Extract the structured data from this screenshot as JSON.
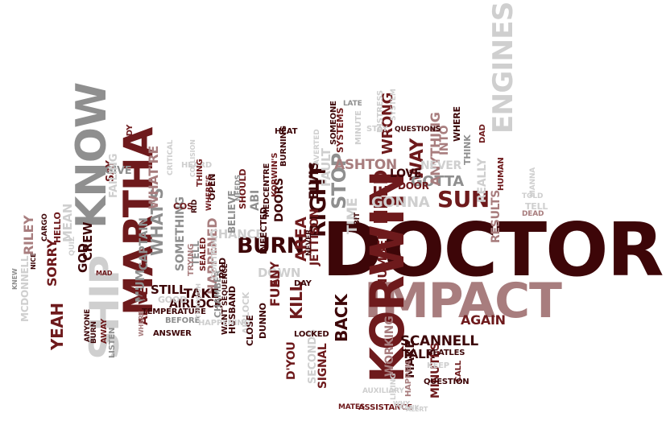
{
  "palette": {
    "dark": "#3d0608",
    "maroon": "#6e1a1c",
    "rose": "#a87d7e",
    "grey": "#8f8f8f",
    "silver": "#cfcfcf",
    "white": "#ffffff"
  },
  "words": [
    {
      "text": "DOCTOR",
      "c": "dark"
    },
    {
      "text": "IMPACT",
      "c": "rose"
    },
    {
      "text": "KORWIN",
      "c": "maroon"
    },
    {
      "text": "MARTHA",
      "c": "maroon"
    },
    {
      "text": "KNOW",
      "c": "grey"
    },
    {
      "text": "SHIP",
      "c": "silver"
    },
    {
      "text": "ENGINES",
      "c": "silver"
    },
    {
      "text": "SUN",
      "c": "maroon"
    },
    {
      "text": "BURN",
      "c": "dark"
    },
    {
      "text": "RIGHT",
      "c": "dark"
    },
    {
      "text": "STOP",
      "c": "grey"
    },
    {
      "text": "NEED",
      "c": "maroon"
    },
    {
      "text": "WAY",
      "c": "maroon"
    },
    {
      "text": "GOTTA",
      "c": "grey"
    },
    {
      "text": "GONNA",
      "c": "silver"
    },
    {
      "text": "ASHTON",
      "c": "rose"
    },
    {
      "text": "TIME",
      "c": "silver"
    },
    {
      "text": "WHAT'S",
      "c": "grey"
    },
    {
      "text": "BACK",
      "c": "dark"
    },
    {
      "text": "KILL",
      "c": "maroon"
    },
    {
      "text": "AREA",
      "c": "maroon"
    },
    {
      "text": "WRONG",
      "c": "maroon"
    },
    {
      "text": "ELVIS",
      "c": "dark"
    },
    {
      "text": "ANYTHING",
      "c": "rose"
    },
    {
      "text": "INTO",
      "c": "rose"
    },
    {
      "text": "NEVER",
      "c": "silver"
    },
    {
      "text": "LOVE",
      "c": "dark"
    },
    {
      "text": "DOOR",
      "c": "maroon"
    },
    {
      "text": "REALLY",
      "c": "silver"
    },
    {
      "text": "RESULTS",
      "c": "rose"
    },
    {
      "text": "WHAT'RE",
      "c": "rose"
    },
    {
      "text": "HAPPENED",
      "c": "rose"
    },
    {
      "text": "CHANCE",
      "c": "silver"
    },
    {
      "text": "DOWN",
      "c": "silver"
    },
    {
      "text": "TAKE",
      "c": "dark"
    },
    {
      "text": "STILL",
      "c": "dark"
    },
    {
      "text": "NUMBER",
      "c": "maroon"
    },
    {
      "text": "JETTISON",
      "c": "maroon"
    },
    {
      "text": "SCANNELL",
      "c": "dark"
    },
    {
      "text": "AGAIN",
      "c": "maroon"
    },
    {
      "text": "TALK",
      "c": "dark"
    },
    {
      "text": "MAKE",
      "c": "dark"
    },
    {
      "text": "MINUTES",
      "c": "maroon"
    },
    {
      "text": "WORKING",
      "c": "rose"
    },
    {
      "text": "SIGNAL",
      "c": "maroon"
    },
    {
      "text": "SECONDS",
      "c": "silver"
    },
    {
      "text": "D'YOU",
      "c": "maroon"
    },
    {
      "text": "FUEL",
      "c": "maroon"
    },
    {
      "text": "ANY",
      "c": "maroon"
    },
    {
      "text": "YEAH",
      "c": "maroon"
    },
    {
      "text": "SORRY",
      "c": "maroon"
    },
    {
      "text": "RILEY",
      "c": "rose"
    },
    {
      "text": "MEAN",
      "c": "silver"
    },
    {
      "text": "MUM",
      "c": "grey"
    },
    {
      "text": "ALIVE",
      "c": "maroon"
    },
    {
      "text": "CREW",
      "c": "dark"
    },
    {
      "text": "GOD",
      "c": "dark"
    },
    {
      "text": "CAPTAIN",
      "c": "grey"
    },
    {
      "text": "SOMETHING",
      "c": "grey"
    },
    {
      "text": "SAY",
      "c": "maroon"
    },
    {
      "text": "GIVE",
      "c": "grey"
    },
    {
      "text": "FAILING",
      "c": "silver"
    },
    {
      "text": "BODY",
      "c": "maroon"
    },
    {
      "text": "MCDONNELL",
      "c": "silver"
    },
    {
      "text": "HELLO",
      "c": "maroon"
    },
    {
      "text": "AIRLOCK",
      "c": "dark"
    },
    {
      "text": "AIRLOCK",
      "c": "silver"
    },
    {
      "text": "DOORS",
      "c": "dark"
    },
    {
      "text": "BELIEVE",
      "c": "grey"
    },
    {
      "text": "SHOULD",
      "c": "maroon"
    },
    {
      "text": "TELL",
      "c": "grey"
    },
    {
      "text": "TELL",
      "c": "silver"
    },
    {
      "text": "SEALED",
      "c": "maroon"
    },
    {
      "text": "GOOD",
      "c": "silver"
    },
    {
      "text": "COS",
      "c": "maroon"
    },
    {
      "text": "OPEN",
      "c": "dark"
    },
    {
      "text": "HEARD",
      "c": "silver"
    },
    {
      "text": "INFECTED",
      "c": "dark"
    },
    {
      "text": "ABI",
      "c": "grey"
    },
    {
      "text": "HUSBAND",
      "c": "dark"
    },
    {
      "text": "DUNNO",
      "c": "dark"
    },
    {
      "text": "WANT",
      "c": "dark"
    },
    {
      "text": "CLOSE",
      "c": "dark"
    },
    {
      "text": "LOCKED",
      "c": "dark"
    },
    {
      "text": "BEATLES",
      "c": "dark"
    },
    {
      "text": "KEEP",
      "c": "silver"
    },
    {
      "text": "CALL",
      "c": "maroon"
    },
    {
      "text": "QUESTION",
      "c": "dark"
    },
    {
      "text": "HAPPEN",
      "c": "rose"
    },
    {
      "text": "ASSISTANCE",
      "c": "maroon"
    },
    {
      "text": "AUXILIARY",
      "c": "silver"
    },
    {
      "text": "LIVING",
      "c": "silver"
    },
    {
      "text": "MATES",
      "c": "maroon"
    },
    {
      "text": "WHY",
      "c": "silver"
    },
    {
      "text": "THANK",
      "c": "silver"
    },
    {
      "text": "ALERT",
      "c": "silver"
    },
    {
      "text": "DAY",
      "c": "dark"
    },
    {
      "text": "NEVER",
      "c": "dark"
    },
    {
      "text": "BIT",
      "c": "dark"
    },
    {
      "text": "SYSTEMS",
      "c": "maroon"
    },
    {
      "text": "MINUTE",
      "c": "silver"
    },
    {
      "text": "SOMEONE",
      "c": "dark"
    },
    {
      "text": "HEAT",
      "c": "dark"
    },
    {
      "text": "BURNING",
      "c": "dark"
    },
    {
      "text": "KORWIN'S",
      "c": "maroon"
    },
    {
      "text": "MEDCENTRE",
      "c": "dark"
    },
    {
      "text": "AVERTED",
      "c": "silver"
    },
    {
      "text": "FAULT",
      "c": "silver"
    },
    {
      "text": "STAY",
      "c": "silver"
    },
    {
      "text": "LATE",
      "c": "grey"
    },
    {
      "text": "DISTRESS",
      "c": "silver"
    },
    {
      "text": "SYSTEM",
      "c": "silver"
    },
    {
      "text": "QUESTIONS",
      "c": "dark"
    },
    {
      "text": "WHERE",
      "c": "dark"
    },
    {
      "text": "THINK",
      "c": "grey"
    },
    {
      "text": "DAD",
      "c": "maroon"
    },
    {
      "text": "HUMAN",
      "c": "maroon"
    },
    {
      "text": "TOLD",
      "c": "silver"
    },
    {
      "text": "DEAD",
      "c": "rose"
    },
    {
      "text": "MANNA",
      "c": "silver"
    },
    {
      "text": "THING",
      "c": "maroon"
    },
    {
      "text": "WHERE'S",
      "c": "maroon"
    },
    {
      "text": "RID",
      "c": "dark"
    },
    {
      "text": "CHAMBER",
      "c": "grey"
    },
    {
      "text": "CONTROL",
      "c": "silver"
    },
    {
      "text": "TRYING",
      "c": "rose"
    },
    {
      "text": "TEMPERATURE",
      "c": "dark"
    },
    {
      "text": "BEFORE",
      "c": "grey"
    },
    {
      "text": "HAPPENING",
      "c": "silver"
    },
    {
      "text": "THROUGH",
      "c": "silver"
    },
    {
      "text": "ANSWER",
      "c": "dark"
    },
    {
      "text": "WHERE",
      "c": "rose"
    },
    {
      "text": "LISTEN",
      "c": "grey"
    },
    {
      "text": "AWAY",
      "c": "maroon"
    },
    {
      "text": "BURN",
      "c": "dark"
    },
    {
      "text": "ANYONE",
      "c": "dark"
    },
    {
      "text": "NICE",
      "c": "dark"
    },
    {
      "text": "CARGO",
      "c": "dark"
    },
    {
      "text": "QUIZ",
      "c": "silver"
    },
    {
      "text": "KNEW",
      "c": "grey"
    },
    {
      "text": "NEEDS",
      "c": "grey"
    },
    {
      "text": "POD",
      "c": "dark"
    },
    {
      "text": "SEQUENCE",
      "c": "dark"
    },
    {
      "text": "CRITICAL",
      "c": "silver"
    },
    {
      "text": "MAD",
      "c": "maroon"
    },
    {
      "text": "COLLISION",
      "c": "silver"
    }
  ]
}
